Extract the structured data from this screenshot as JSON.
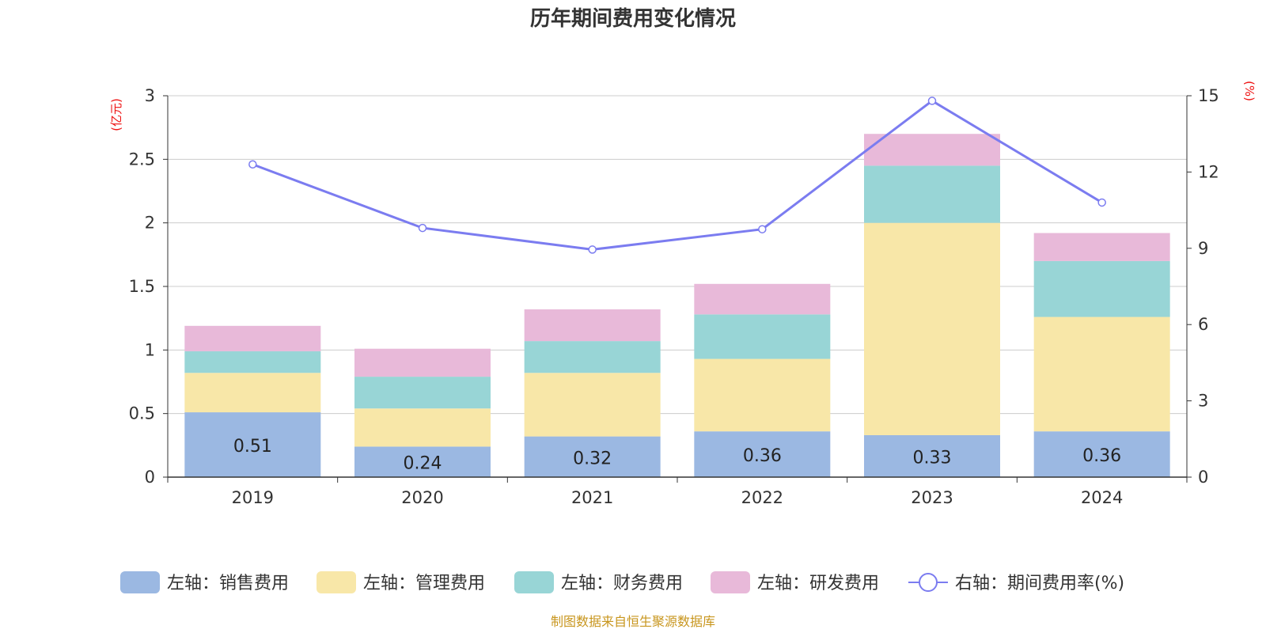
{
  "chart_data": {
    "type": "bar",
    "title": "历年期间费用变化情况",
    "categories": [
      "2019",
      "2020",
      "2021",
      "2022",
      "2023",
      "2024"
    ],
    "left_axis": {
      "unit": "(亿元)",
      "ylim": [
        0,
        3
      ],
      "ticks": [
        "0",
        "0.5",
        "1",
        "1.5",
        "2",
        "2.5",
        "3"
      ]
    },
    "right_axis": {
      "unit": "(%)",
      "ylim": [
        0,
        15
      ],
      "ticks": [
        "0",
        "3",
        "6",
        "9",
        "12",
        "15"
      ]
    },
    "series": [
      {
        "name": "左轴：销售费用",
        "type": "bar",
        "stack": true,
        "color": "#9bb8e2",
        "values": [
          0.51,
          0.24,
          0.32,
          0.36,
          0.33,
          0.36
        ],
        "labels": [
          "0.51",
          "0.24",
          "0.32",
          "0.36",
          "0.33",
          "0.36"
        ]
      },
      {
        "name": "左轴：管理费用",
        "type": "bar",
        "stack": true,
        "color": "#f8e7a8",
        "values": [
          0.31,
          0.3,
          0.5,
          0.57,
          1.67,
          0.9
        ]
      },
      {
        "name": "左轴：财务费用",
        "type": "bar",
        "stack": true,
        "color": "#98d5d6",
        "values": [
          0.17,
          0.25,
          0.25,
          0.35,
          0.45,
          0.44
        ]
      },
      {
        "name": "左轴：研发费用",
        "type": "bar",
        "stack": true,
        "color": "#e8b9d9",
        "values": [
          0.2,
          0.22,
          0.25,
          0.24,
          0.25,
          0.22
        ]
      },
      {
        "name": "右轴：期间费用率(%)",
        "type": "line",
        "axis": "right",
        "color": "#7b7cf0",
        "values": [
          12.3,
          9.8,
          8.95,
          9.75,
          14.8,
          10.8
        ]
      }
    ],
    "grid": true,
    "legend_position": "bottom"
  },
  "source_text": "制图数据来自恒生聚源数据库"
}
